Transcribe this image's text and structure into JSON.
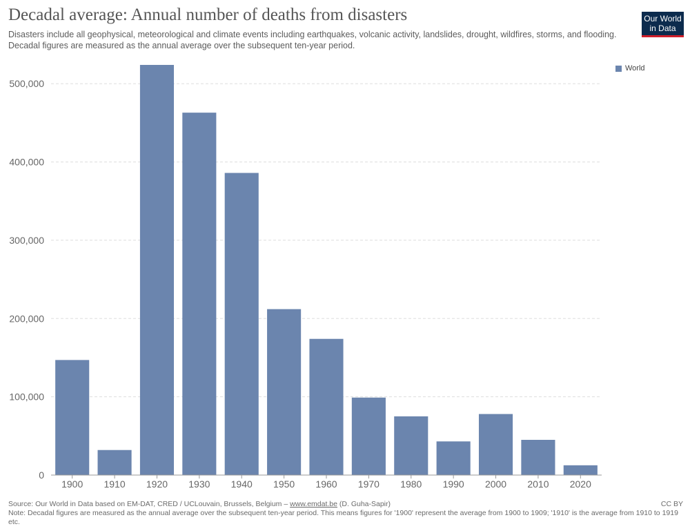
{
  "header": {
    "title": "Decadal average: Annual number of deaths from disasters",
    "subtitle_line1": "Disasters include all geophysical, meteorological and climate events including earthquakes, volcanic activity, landslides, drought, wildfires, storms, and flooding.",
    "subtitle_line2": "Decadal figures are measured as the annual average over the subsequent ten-year period."
  },
  "logo": {
    "line1": "Our World",
    "line2": "in Data"
  },
  "footer": {
    "source_prefix": "Source: Our World in Data based on EM-DAT, CRED / UCLouvain, Brussels, Belgium – ",
    "source_link": "www.emdat.be",
    "source_suffix": " (D. Guha-Sapir)",
    "note": "Note: Decadal figures are measured as the annual average over the subsequent ten-year period. This means figures for '1900' represent the average from 1900 to 1909; '1910' is the average from 1910 to 1919 etc.",
    "license": "CC BY"
  },
  "chart_data": {
    "type": "bar",
    "categories": [
      "1900",
      "1910",
      "1920",
      "1930",
      "1940",
      "1950",
      "1960",
      "1970",
      "1980",
      "1990",
      "2000",
      "2010",
      "2020"
    ],
    "series": [
      {
        "name": "World",
        "color": "#6b85ae",
        "values": [
          147000,
          32000,
          524000,
          463000,
          386000,
          212000,
          174000,
          99000,
          75000,
          43000,
          78000,
          45000,
          12500
        ]
      }
    ],
    "ylim": [
      0,
      524000
    ],
    "yticks": [
      0,
      100000,
      200000,
      300000,
      400000,
      500000
    ],
    "ytick_labels": [
      "0",
      "100,000",
      "200,000",
      "300,000",
      "400,000",
      "500,000"
    ],
    "grid": true,
    "legend": "top-right"
  }
}
